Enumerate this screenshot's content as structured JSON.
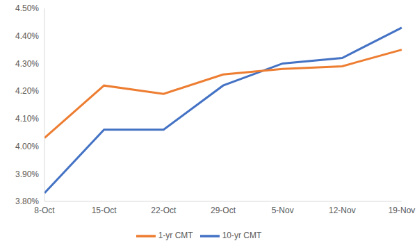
{
  "chart_data": {
    "type": "line",
    "categories": [
      "8-Oct",
      "15-Oct",
      "22-Oct",
      "29-Oct",
      "5-Nov",
      "12-Nov",
      "19-Nov"
    ],
    "series": [
      {
        "name": "10-yr CMT",
        "color": "#4472c4",
        "values": [
          3.83,
          4.06,
          4.06,
          4.22,
          4.3,
          4.32,
          4.43
        ]
      },
      {
        "name": "1-yr CMT",
        "color": "#ed7d31",
        "values": [
          4.03,
          4.22,
          4.19,
          4.26,
          4.28,
          4.29,
          4.35
        ]
      }
    ],
    "ylim": [
      3.8,
      4.5
    ],
    "yticks": [
      {
        "value": 3.8,
        "label": "3.80%"
      },
      {
        "value": 3.9,
        "label": "3.90%"
      },
      {
        "value": 4.0,
        "label": "4.00%"
      },
      {
        "value": 4.1,
        "label": "4.10%"
      },
      {
        "value": 4.2,
        "label": "4.20%"
      },
      {
        "value": 4.3,
        "label": "4.30%"
      },
      {
        "value": 4.4,
        "label": "4.40%"
      },
      {
        "value": 4.5,
        "label": "4.50%"
      }
    ],
    "grid": false,
    "legend": "bottom"
  }
}
